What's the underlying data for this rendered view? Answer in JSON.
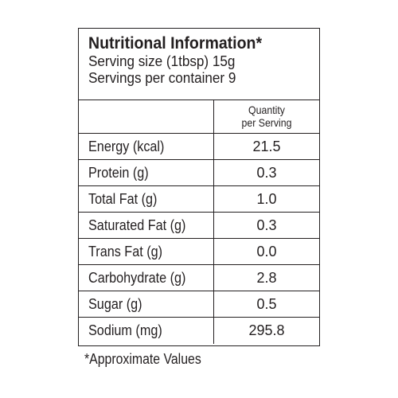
{
  "label": {
    "title": "Nutritional Information*",
    "serving_size": "Serving size (1tbsp) 15g",
    "servings_per_container": "Servings per container 9",
    "column_header_line1": "Quantity",
    "column_header_line2": "per Serving",
    "rows": [
      {
        "name": "Energy (kcal)",
        "value": "21.5"
      },
      {
        "name": "Protein (g)",
        "value": "0.3"
      },
      {
        "name": "Total Fat (g)",
        "value": "1.0"
      },
      {
        "name": "Saturated Fat (g)",
        "value": "0.3"
      },
      {
        "name": "Trans Fat (g)",
        "value": "0.0"
      },
      {
        "name": "Carbohydrate (g)",
        "value": "2.8"
      },
      {
        "name": "Sugar (g)",
        "value": "0.5"
      },
      {
        "name": "Sodium (mg)",
        "value": "295.8"
      }
    ]
  },
  "footnote": "*Approximate Values"
}
